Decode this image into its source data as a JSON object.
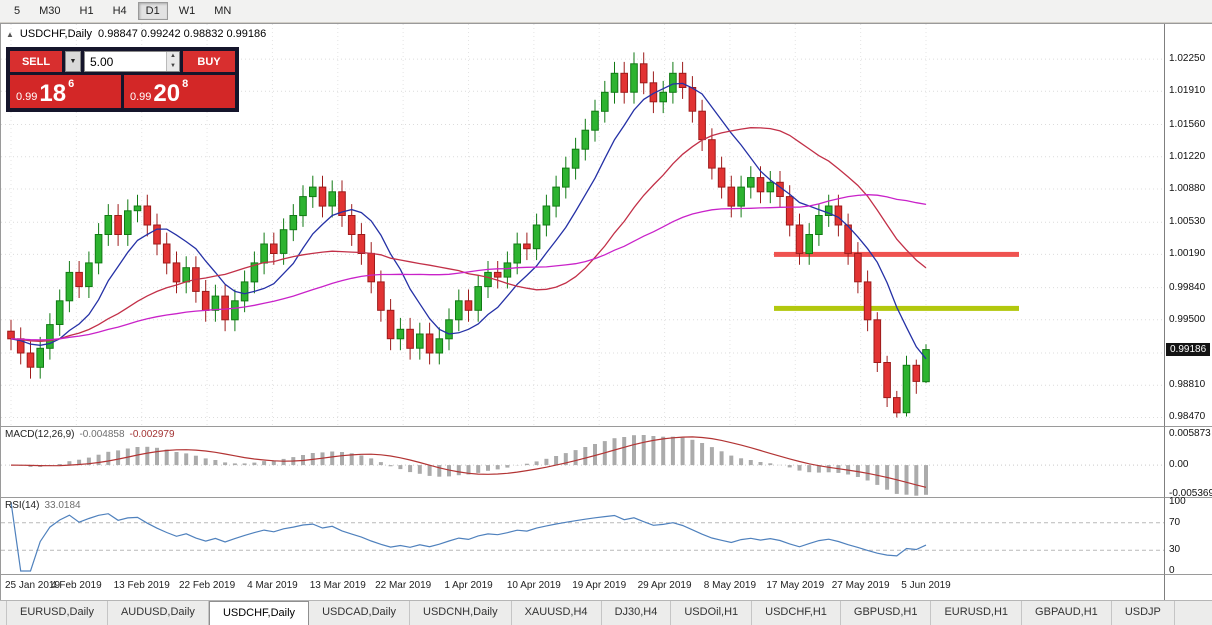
{
  "window": {
    "collapse_icon": "▲",
    "title": "USDCHF,Daily",
    "ohlc": "0.98847 0.99242 0.98832 0.99186"
  },
  "toolbar": {
    "timeframes": [
      "5",
      "M30",
      "H1",
      "H4",
      "D1",
      "W1",
      "MN"
    ],
    "active": "D1"
  },
  "trade_panel": {
    "sell_label": "SELL",
    "buy_label": "BUY",
    "volume": "5.00",
    "icons": {
      "dropdown": "▼",
      "spin_up": "▲",
      "spin_down": "▼"
    },
    "sell_price": {
      "prefix": "0.99",
      "big": "18",
      "sup": "6"
    },
    "buy_price": {
      "prefix": "0.99",
      "big": "20",
      "sup": "8"
    }
  },
  "price_scale": {
    "labels": [
      "1.02250",
      "1.01910",
      "1.01560",
      "1.01220",
      "1.00880",
      "1.00530",
      "1.00190",
      "0.99840",
      "0.99500",
      "0.99150",
      "0.98810",
      "0.98470"
    ],
    "current_price": "0.99186"
  },
  "macd_panel": {
    "name": "MACD(12,26,9)",
    "value_main": "-0.004858",
    "value_signal": "-0.002979",
    "scale": [
      "0.005873",
      "0.00",
      "-0.005369"
    ]
  },
  "rsi_panel": {
    "name": "RSI(14)",
    "value": "33.0184",
    "scale": [
      "100",
      "70",
      "30",
      "0"
    ]
  },
  "date_axis": [
    "25 Jan 2019",
    "4 Feb 2019",
    "13 Feb 2019",
    "22 Feb 2019",
    "4 Mar 2019",
    "13 Mar 2019",
    "22 Mar 2019",
    "1 Apr 2019",
    "10 Apr 2019",
    "19 Apr 2019",
    "29 Apr 2019",
    "8 May 2019",
    "17 May 2019",
    "27 May 2019",
    "5 Jun 2019"
  ],
  "tabs": {
    "items": [
      "EURUSD,Daily",
      "AUDUSD,Daily",
      "USDCHF,Daily",
      "USDCAD,Daily",
      "USDCNH,Daily",
      "XAUUSD,H4",
      "DJ30,H4",
      "USDOil,H1",
      "USDCHF,H1",
      "GBPUSD,H1",
      "EURUSD,H1",
      "GBPAUD,H1",
      "USDJP"
    ],
    "active_index": 2
  },
  "chart_data": {
    "type": "candlestick",
    "title": "USDCHF,Daily",
    "ohlc_display": {
      "open": 0.98847,
      "high": 0.99242,
      "low": 0.98832,
      "close": 0.99186
    },
    "y_range": [
      0.9838,
      1.0262
    ],
    "candles": [
      [
        0.9938,
        0.995,
        0.9918,
        0.993
      ],
      [
        0.993,
        0.9942,
        0.9903,
        0.9915
      ],
      [
        0.9915,
        0.9927,
        0.9888,
        0.99
      ],
      [
        0.99,
        0.9932,
        0.9888,
        0.992
      ],
      [
        0.992,
        0.9957,
        0.9908,
        0.9945
      ],
      [
        0.9945,
        0.9982,
        0.9933,
        0.997
      ],
      [
        0.997,
        1.0012,
        0.9958,
        1.0
      ],
      [
        1.0,
        1.0012,
        0.9973,
        0.9985
      ],
      [
        0.9985,
        1.0022,
        0.9973,
        1.001
      ],
      [
        1.001,
        1.0052,
        0.9998,
        1.004
      ],
      [
        1.004,
        1.0072,
        1.0028,
        1.006
      ],
      [
        1.006,
        1.0072,
        1.0028,
        1.004
      ],
      [
        1.004,
        1.0077,
        1.0028,
        1.0065
      ],
      [
        1.0065,
        1.0082,
        1.0053,
        1.007
      ],
      [
        1.007,
        1.0082,
        1.0038,
        1.005
      ],
      [
        1.005,
        1.0062,
        1.0018,
        1.003
      ],
      [
        1.003,
        1.0042,
        0.9998,
        1.001
      ],
      [
        1.001,
        1.0022,
        0.9978,
        0.999
      ],
      [
        0.999,
        1.0017,
        0.9978,
        1.0005
      ],
      [
        1.0005,
        1.0017,
        0.9968,
        0.998
      ],
      [
        0.998,
        0.9992,
        0.9948,
        0.996
      ],
      [
        0.996,
        0.9987,
        0.9948,
        0.9975
      ],
      [
        0.9975,
        0.9987,
        0.9938,
        0.995
      ],
      [
        0.995,
        0.9982,
        0.9938,
        0.997
      ],
      [
        0.997,
        1.0002,
        0.9958,
        0.999
      ],
      [
        0.999,
        1.0022,
        0.9978,
        1.001
      ],
      [
        1.001,
        1.0042,
        0.9998,
        1.003
      ],
      [
        1.003,
        1.0042,
        1.0008,
        1.002
      ],
      [
        1.002,
        1.0057,
        1.0008,
        1.0045
      ],
      [
        1.0045,
        1.0072,
        1.0033,
        1.006
      ],
      [
        1.006,
        1.0092,
        1.0048,
        1.008
      ],
      [
        1.008,
        1.0102,
        1.0068,
        1.009
      ],
      [
        1.009,
        1.0102,
        1.0058,
        1.007
      ],
      [
        1.007,
        1.0097,
        1.0058,
        1.0085
      ],
      [
        1.0085,
        1.0097,
        1.0048,
        1.006
      ],
      [
        1.006,
        1.0072,
        1.0028,
        1.004
      ],
      [
        1.004,
        1.0052,
        1.0008,
        1.002
      ],
      [
        1.002,
        1.0032,
        0.9978,
        0.999
      ],
      [
        0.999,
        1.0002,
        0.9948,
        0.996
      ],
      [
        0.996,
        0.9972,
        0.9918,
        0.993
      ],
      [
        0.993,
        0.9952,
        0.9918,
        0.994
      ],
      [
        0.994,
        0.9952,
        0.9908,
        0.992
      ],
      [
        0.992,
        0.9947,
        0.9908,
        0.9935
      ],
      [
        0.9935,
        0.9947,
        0.9903,
        0.9915
      ],
      [
        0.9915,
        0.9942,
        0.9903,
        0.993
      ],
      [
        0.993,
        0.9962,
        0.9918,
        0.995
      ],
      [
        0.995,
        0.9982,
        0.9938,
        0.997
      ],
      [
        0.997,
        0.9982,
        0.9948,
        0.996
      ],
      [
        0.996,
        0.9997,
        0.9948,
        0.9985
      ],
      [
        0.9985,
        1.0012,
        0.9973,
        1.0
      ],
      [
        1.0,
        1.0012,
        0.9983,
        0.9995
      ],
      [
        0.9995,
        1.0022,
        0.9983,
        1.001
      ],
      [
        1.001,
        1.0042,
        0.9998,
        1.003
      ],
      [
        1.003,
        1.0042,
        1.0013,
        1.0025
      ],
      [
        1.0025,
        1.0062,
        1.0013,
        1.005
      ],
      [
        1.005,
        1.0082,
        1.0038,
        1.007
      ],
      [
        1.007,
        1.0102,
        1.0058,
        1.009
      ],
      [
        1.009,
        1.0122,
        1.0078,
        1.011
      ],
      [
        1.011,
        1.0142,
        1.0098,
        1.013
      ],
      [
        1.013,
        1.0162,
        1.0118,
        1.015
      ],
      [
        1.015,
        1.0182,
        1.0138,
        1.017
      ],
      [
        1.017,
        1.0202,
        1.0158,
        1.019
      ],
      [
        1.019,
        1.0222,
        1.0178,
        1.021
      ],
      [
        1.021,
        1.0222,
        1.0178,
        1.019
      ],
      [
        1.019,
        1.0232,
        1.0178,
        1.022
      ],
      [
        1.022,
        1.0232,
        1.0188,
        1.02
      ],
      [
        1.02,
        1.0212,
        1.0168,
        1.018
      ],
      [
        1.018,
        1.0202,
        1.0168,
        1.019
      ],
      [
        1.019,
        1.0222,
        1.0178,
        1.021
      ],
      [
        1.021,
        1.0222,
        1.0183,
        1.0195
      ],
      [
        1.0195,
        1.0207,
        1.0158,
        1.017
      ],
      [
        1.017,
        1.0182,
        1.0128,
        1.014
      ],
      [
        1.014,
        1.0152,
        1.0098,
        1.011
      ],
      [
        1.011,
        1.0122,
        1.0078,
        1.009
      ],
      [
        1.009,
        1.0102,
        1.0058,
        1.007
      ],
      [
        1.007,
        1.0102,
        1.0058,
        1.009
      ],
      [
        1.009,
        1.0112,
        1.0078,
        1.01
      ],
      [
        1.01,
        1.0112,
        1.0073,
        1.0085
      ],
      [
        1.0085,
        1.0107,
        1.0073,
        1.0095
      ],
      [
        1.0095,
        1.0107,
        1.0068,
        1.008
      ],
      [
        1.008,
        1.0092,
        1.0038,
        1.005
      ],
      [
        1.005,
        1.0062,
        1.0008,
        1.002
      ],
      [
        1.002,
        1.0052,
        1.0008,
        1.004
      ],
      [
        1.004,
        1.0072,
        1.0028,
        1.006
      ],
      [
        1.006,
        1.0082,
        1.0048,
        1.007
      ],
      [
        1.007,
        1.0082,
        1.0038,
        1.005
      ],
      [
        1.005,
        1.0062,
        1.0008,
        1.002
      ],
      [
        1.002,
        1.0032,
        0.9978,
        0.999
      ],
      [
        0.999,
        1.0002,
        0.9938,
        0.995
      ],
      [
        0.995,
        0.9958,
        0.9895,
        0.9905
      ],
      [
        0.9905,
        0.9912,
        0.9858,
        0.9868
      ],
      [
        0.9868,
        0.9875,
        0.9847,
        0.9852
      ],
      [
        0.9852,
        0.9912,
        0.9848,
        0.9902
      ],
      [
        0.9902,
        0.9908,
        0.9872,
        0.9885
      ],
      [
        0.98847,
        0.99242,
        0.98832,
        0.99186
      ]
    ],
    "moving_averages": [
      {
        "name": "fast-ma",
        "period": 8,
        "color": "#2531a6"
      },
      {
        "name": "mid-ma",
        "period": 21,
        "color": "#c23048"
      },
      {
        "name": "slow-ma",
        "period": 45,
        "color": "#c922c9"
      }
    ],
    "horizontal_lines": [
      {
        "name": "resistance",
        "price": 1.0019,
        "color": "#ef5350",
        "thickness": 5
      },
      {
        "name": "support",
        "price": 0.9962,
        "color": "#b2c80e",
        "thickness": 5
      }
    ],
    "hline_x": [
      773,
      1018
    ],
    "colors": {
      "bull": "#2db330",
      "bull_border": "#117a14",
      "bear": "#e23333",
      "bear_border": "#9d1b1b",
      "macd_histogram": "#ababab",
      "macd_signal": "#b23434",
      "rsi_line": "#4f81bd",
      "grid": "#dcdcdc"
    },
    "macd": {
      "fast": 12,
      "slow": 26,
      "signal": 9,
      "y_range": [
        -0.0062,
        0.0072
      ]
    },
    "rsi": {
      "period": 14,
      "levels": [
        70,
        30
      ],
      "y_range": [
        0,
        100
      ]
    }
  }
}
